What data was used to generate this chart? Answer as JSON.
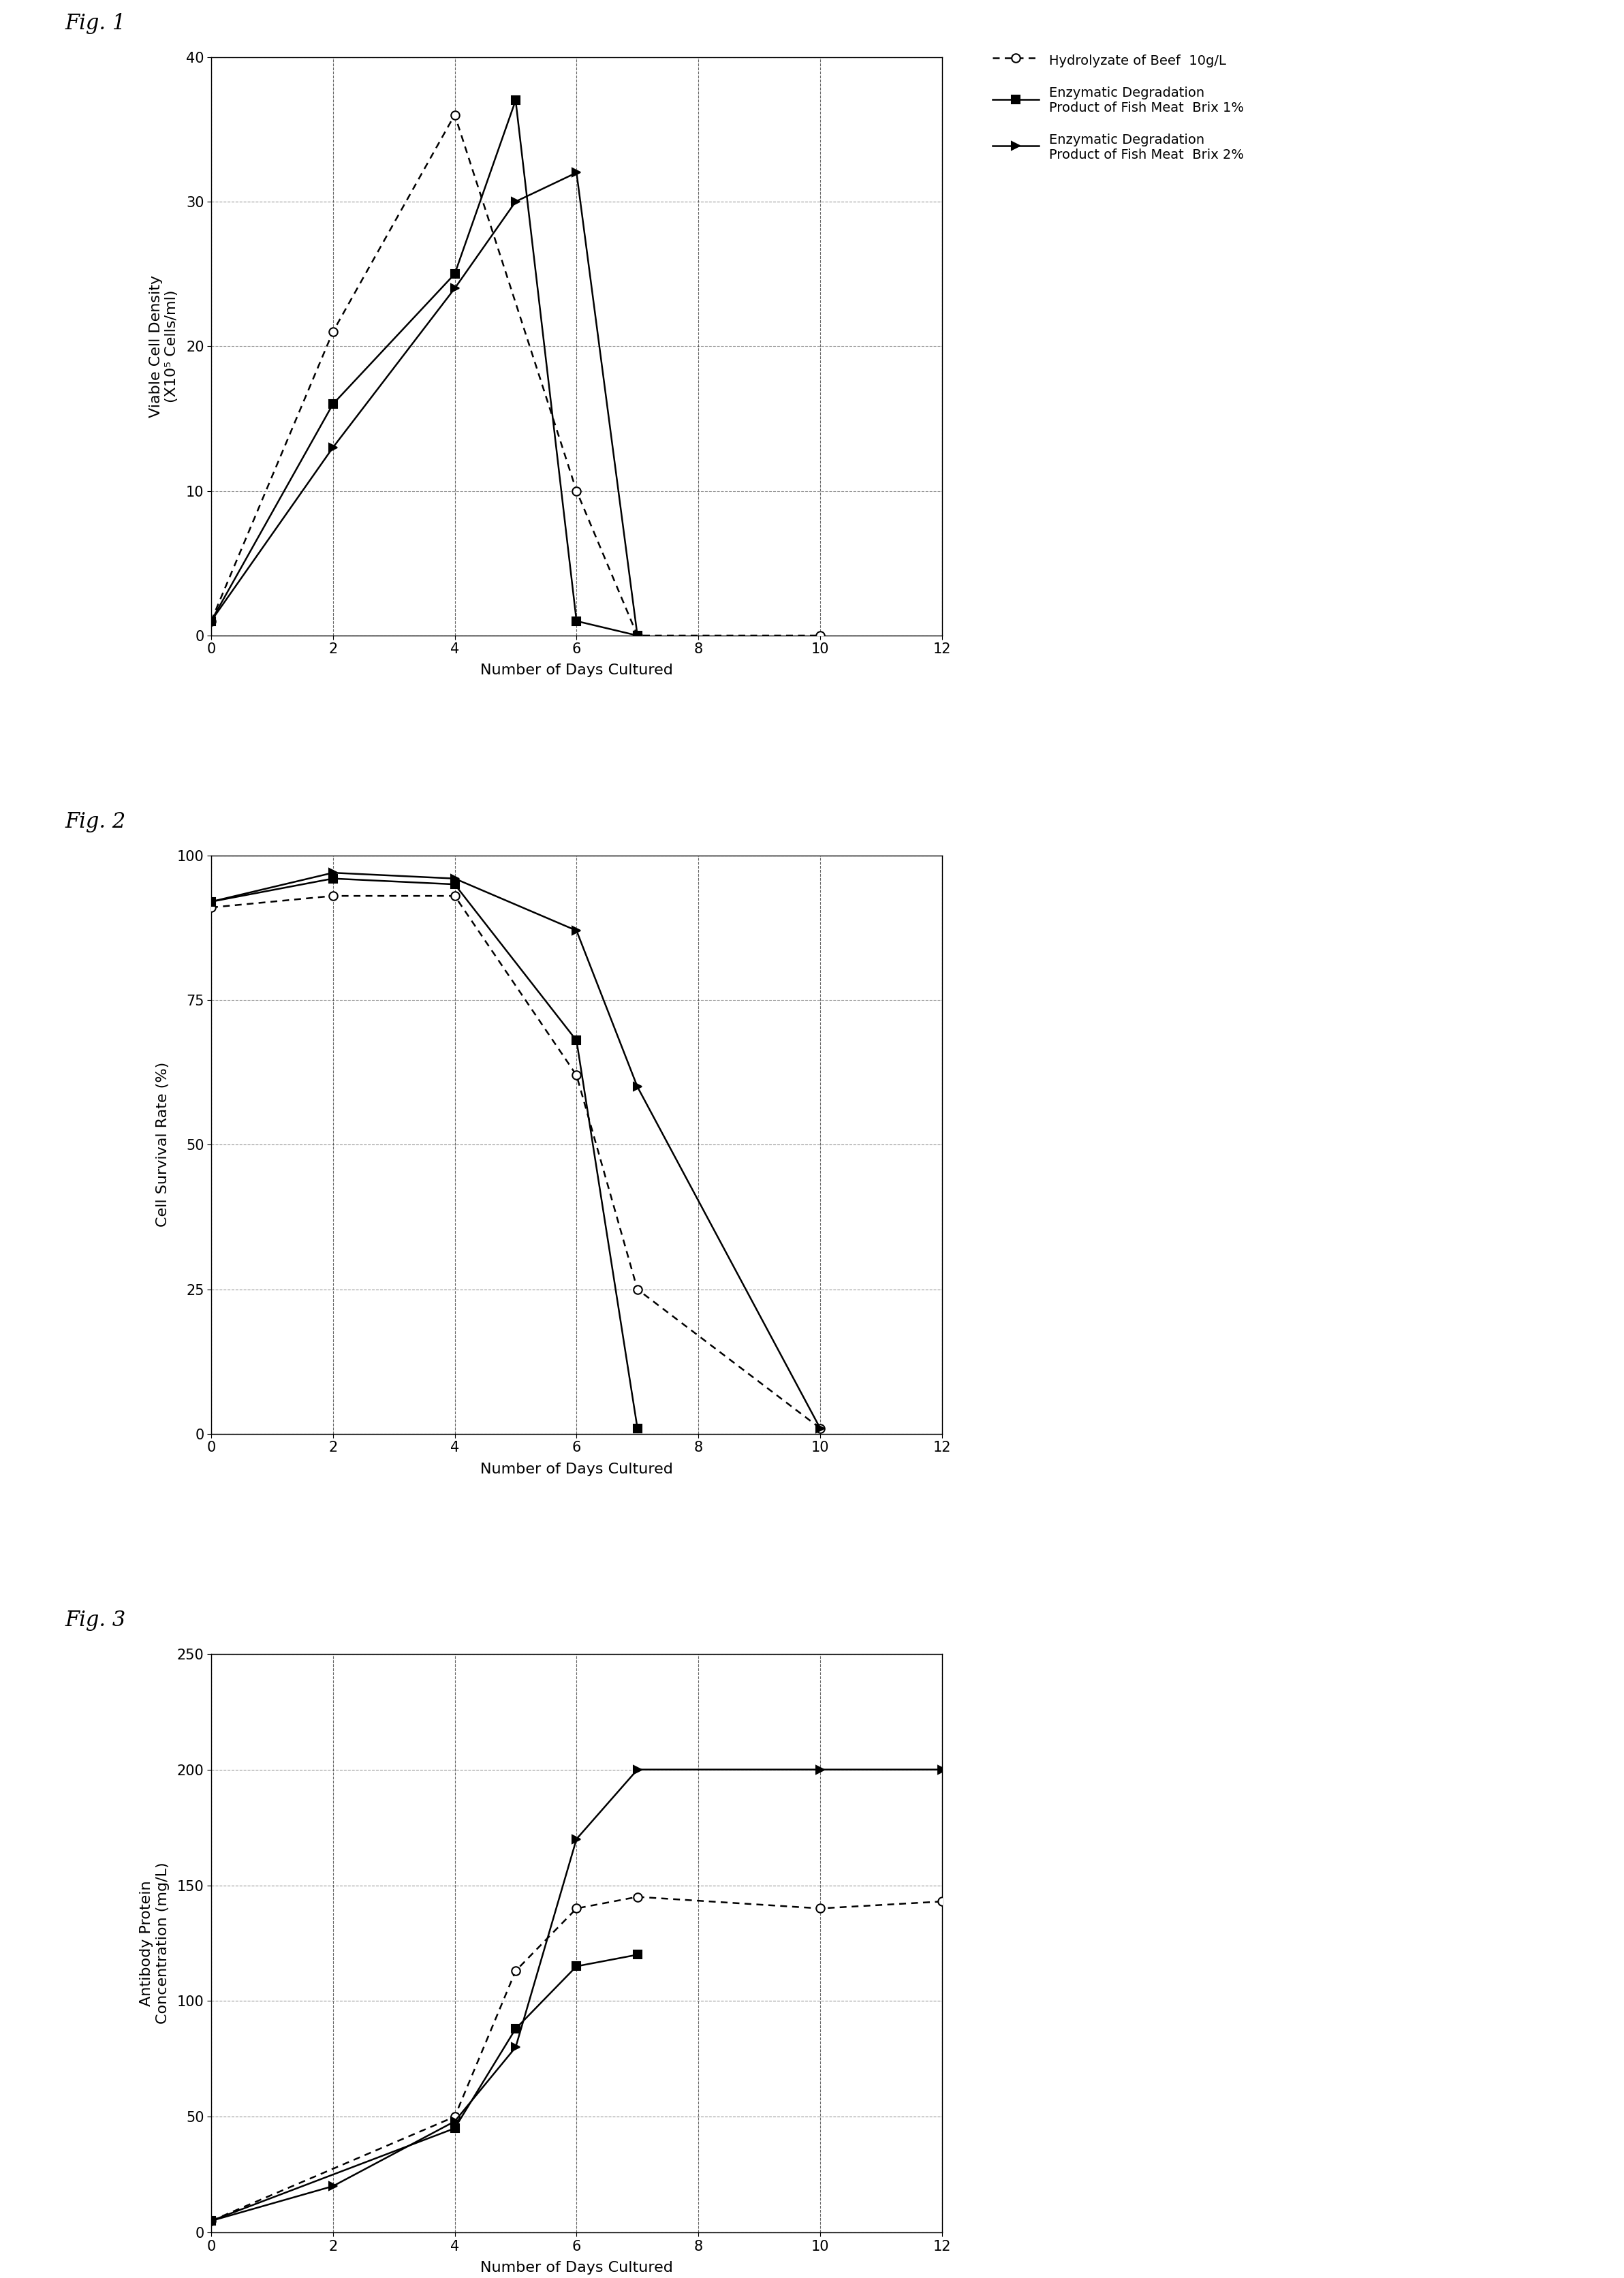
{
  "fig1": {
    "ylabel": "Viable Cell Density\n(X10⁵ Cells/ml)",
    "xlabel": "Number of Days Cultured",
    "ylim": [
      0,
      40
    ],
    "xlim": [
      0,
      12
    ],
    "yticks": [
      0,
      10,
      20,
      30,
      40
    ],
    "xticks": [
      0,
      2,
      4,
      6,
      8,
      10,
      12
    ],
    "series": [
      {
        "label": "Hydrolyzate of Beef  10g/L",
        "x": [
          0,
          2,
          4,
          6,
          7,
          10
        ],
        "y": [
          1,
          21,
          36,
          10,
          0,
          0
        ],
        "linestyle": "dotted",
        "marker": "o",
        "markerfacecolor": "white",
        "color": "black"
      },
      {
        "label": "Enzymatic Degradation\nProduct of Fish Meat  Brix 1%",
        "x": [
          0,
          2,
          4,
          5,
          6,
          7
        ],
        "y": [
          1,
          16,
          25,
          37,
          1,
          0
        ],
        "linestyle": "solid",
        "marker": "s",
        "markerfacecolor": "black",
        "color": "black"
      },
      {
        "label": "Enzymatic Degradation\nProduct of Fish Meat  Brix 2%",
        "x": [
          0,
          2,
          4,
          5,
          6,
          7
        ],
        "y": [
          1,
          13,
          24,
          30,
          32,
          0
        ],
        "linestyle": "solid",
        "marker": ">",
        "markerfacecolor": "black",
        "color": "black"
      }
    ]
  },
  "fig2": {
    "ylabel": "Cell Survival Rate (%)",
    "xlabel": "Number of Days Cultured",
    "ylim": [
      0,
      100
    ],
    "xlim": [
      0,
      12
    ],
    "yticks": [
      0,
      25,
      50,
      75,
      100
    ],
    "xticks": [
      0,
      2,
      4,
      6,
      8,
      10,
      12
    ],
    "series": [
      {
        "label": "Hydrolyzate of Beef  10g/L",
        "x": [
          0,
          2,
          4,
          6,
          7,
          10
        ],
        "y": [
          91,
          93,
          93,
          62,
          25,
          1
        ],
        "linestyle": "dotted",
        "marker": "o",
        "markerfacecolor": "white",
        "color": "black"
      },
      {
        "label": "Enzymatic Degradation\nProduct of Fish Meat  Brix 1%",
        "x": [
          0,
          2,
          4,
          6,
          7
        ],
        "y": [
          92,
          96,
          95,
          68,
          1
        ],
        "linestyle": "solid",
        "marker": "s",
        "markerfacecolor": "black",
        "color": "black"
      },
      {
        "label": "Enzymatic Degradation\nProduct of Fish Meat  Brix 2%",
        "x": [
          0,
          2,
          4,
          6,
          7,
          10
        ],
        "y": [
          92,
          97,
          96,
          87,
          60,
          1
        ],
        "linestyle": "solid",
        "marker": ">",
        "markerfacecolor": "black",
        "color": "black"
      }
    ]
  },
  "fig3": {
    "ylabel": "Antibody Protein\nConcentration (mg/L)",
    "xlabel": "Number of Days Cultured",
    "ylim": [
      0,
      250
    ],
    "xlim": [
      0,
      12
    ],
    "yticks": [
      0,
      50,
      100,
      150,
      200,
      250
    ],
    "xticks": [
      0,
      2,
      4,
      6,
      8,
      10,
      12
    ],
    "series": [
      {
        "label": "Hydrolyzate of Beef  10g/L",
        "x": [
          0,
          4,
          5,
          6,
          7,
          10,
          12
        ],
        "y": [
          5,
          50,
          113,
          140,
          145,
          140,
          143
        ],
        "linestyle": "dotted",
        "marker": "o",
        "markerfacecolor": "white",
        "color": "black"
      },
      {
        "label": "Enzymatic Degradation\nProduct of Fish Meat  Brix 1%",
        "x": [
          0,
          4,
          5,
          6,
          7
        ],
        "y": [
          5,
          45,
          88,
          115,
          120
        ],
        "linestyle": "solid",
        "marker": "s",
        "markerfacecolor": "black",
        "color": "black"
      },
      {
        "label": "Enzymatic Degradation\nProduct of Fish Meat  Brix 2%",
        "x": [
          0,
          2,
          4,
          5,
          6,
          7,
          10,
          12
        ],
        "y": [
          5,
          20,
          48,
          80,
          170,
          200,
          200,
          200
        ],
        "linestyle": "solid",
        "marker": ">",
        "markerfacecolor": "black",
        "color": "black"
      }
    ]
  },
  "legend_labels": [
    "Hydrolyzate of Beef  10g/L",
    "Enzymatic Degradation\nProduct of Fish Meat  Brix 1%",
    "Enzymatic Degradation\nProduct of Fish Meat  Brix 2%"
  ],
  "fig_labels": [
    "Fig. 1",
    "Fig. 2",
    "Fig. 3"
  ],
  "background_color": "#ffffff",
  "fig_label_fontsize": 22,
  "axis_label_fontsize": 16,
  "tick_fontsize": 15,
  "legend_fontsize": 14
}
